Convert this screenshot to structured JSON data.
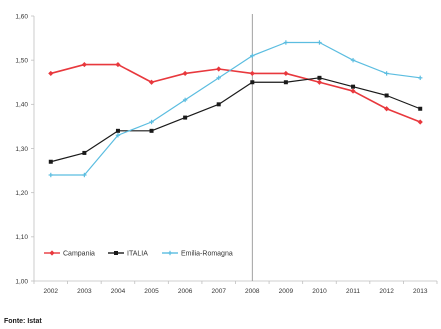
{
  "source_note": "Fonte: Istat",
  "chart_data": {
    "type": "line",
    "title": "",
    "xlabel": "",
    "ylabel": "",
    "categories": [
      "2002",
      "2003",
      "2004",
      "2005",
      "2006",
      "2007",
      "2008",
      "2009",
      "2010",
      "2011",
      "2012",
      "2013"
    ],
    "y_ticks": [
      "1,00",
      "1,10",
      "1,20",
      "1,30",
      "1,40",
      "1,50",
      "1,60"
    ],
    "ylim": [
      1.0,
      1.6
    ],
    "reference_line_at": "2008",
    "grid": false,
    "legend_position": "bottom-left",
    "series": [
      {
        "name": "Campania",
        "color": "#e8383d",
        "marker": "diamond",
        "values": [
          1.47,
          1.49,
          1.49,
          1.45,
          1.47,
          1.48,
          1.47,
          1.47,
          1.45,
          1.43,
          1.39,
          1.36
        ]
      },
      {
        "name": "ITALIA",
        "color": "#1a1a1a",
        "marker": "square",
        "values": [
          1.27,
          1.29,
          1.34,
          1.34,
          1.37,
          1.4,
          1.45,
          1.45,
          1.46,
          1.44,
          1.42,
          1.39
        ]
      },
      {
        "name": "Emilia-Romagna",
        "color": "#5bbde0",
        "marker": "cross",
        "values": [
          1.24,
          1.24,
          1.33,
          1.36,
          1.41,
          1.46,
          1.51,
          1.54,
          1.54,
          1.5,
          1.47,
          1.46
        ]
      }
    ]
  }
}
